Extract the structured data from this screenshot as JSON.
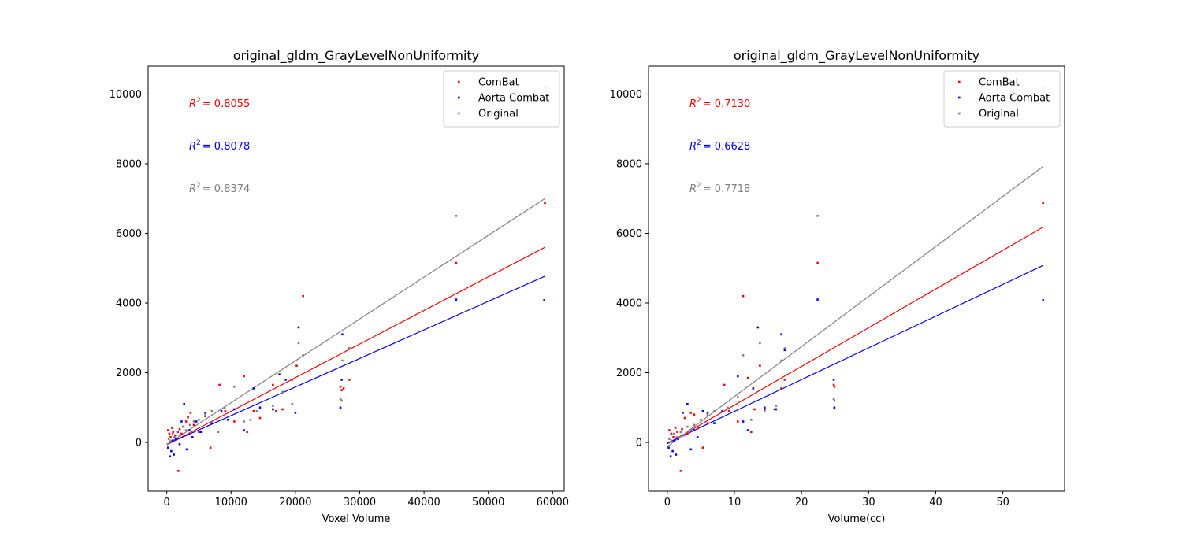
{
  "chart_data": [
    {
      "type": "scatter",
      "title": "original_gldm_GrayLevelNonUniformity",
      "xlabel": "Voxel Volume",
      "ylabel": "",
      "xlim": [
        -2900,
        61800
      ],
      "ylim": [
        -1400,
        10800
      ],
      "xticks": [
        0,
        10000,
        20000,
        30000,
        40000,
        50000,
        60000
      ],
      "yticks": [
        0,
        2000,
        4000,
        6000,
        8000,
        10000
      ],
      "legend": {
        "placement": "top-right",
        "entries": [
          "ComBat",
          "Aorta Combat",
          "Original"
        ]
      },
      "annotations": [
        {
          "prefix": "R",
          "sup": "2",
          "value": "= 0.8055",
          "color": "#ff0000"
        },
        {
          "prefix": "R",
          "sup": "2",
          "value": "= 0.8078",
          "color": "#0000ff"
        },
        {
          "prefix": "R",
          "sup": "2",
          "value": "= 0.8374",
          "color": "#808080"
        }
      ],
      "series": [
        {
          "name": "ComBat",
          "color": "#ff0000",
          "fit": {
            "x": [
              0,
              58800
            ],
            "y": [
              -70,
              5600
            ]
          },
          "points": [
            [
              200,
              350
            ],
            [
              400,
              250
            ],
            [
              600,
              150
            ],
            [
              800,
              420
            ],
            [
              1000,
              300
            ],
            [
              1300,
              200
            ],
            [
              1600,
              100
            ],
            [
              1800,
              -820
            ],
            [
              2000,
              380
            ],
            [
              2300,
              250
            ],
            [
              2600,
              450
            ],
            [
              3000,
              600
            ],
            [
              3300,
              720
            ],
            [
              3700,
              850
            ],
            [
              4200,
              500
            ],
            [
              5000,
              300
            ],
            [
              6000,
              750
            ],
            [
              6800,
              -150
            ],
            [
              8200,
              1650
            ],
            [
              9100,
              900
            ],
            [
              10500,
              600
            ],
            [
              12000,
              1900
            ],
            [
              12500,
              300
            ],
            [
              13500,
              900
            ],
            [
              14500,
              700
            ],
            [
              16500,
              1650
            ],
            [
              17000,
              900
            ],
            [
              18000,
              950
            ],
            [
              19500,
              1800
            ],
            [
              20200,
              2200
            ],
            [
              21200,
              4200
            ],
            [
              27000,
              1600
            ],
            [
              27200,
              1500
            ],
            [
              27500,
              1550
            ],
            [
              28400,
              1800
            ],
            [
              28300,
              2700
            ],
            [
              45000,
              5150
            ],
            [
              58800,
              6870
            ]
          ]
        },
        {
          "name": "Aorta Combat",
          "color": "#0000ff",
          "fit": {
            "x": [
              0,
              58800
            ],
            "y": [
              -50,
              4770
            ]
          },
          "points": [
            [
              200,
              -150
            ],
            [
              500,
              -400
            ],
            [
              700,
              -250
            ],
            [
              900,
              50
            ],
            [
              1100,
              -350
            ],
            [
              1400,
              100
            ],
            [
              1700,
              300
            ],
            [
              2000,
              -50
            ],
            [
              2300,
              600
            ],
            [
              2700,
              1100
            ],
            [
              3100,
              -200
            ],
            [
              3500,
              350
            ],
            [
              4000,
              150
            ],
            [
              4600,
              600
            ],
            [
              5300,
              300
            ],
            [
              6000,
              850
            ],
            [
              7000,
              550
            ],
            [
              8500,
              900
            ],
            [
              9500,
              650
            ],
            [
              10500,
              950
            ],
            [
              12000,
              350
            ],
            [
              13500,
              1550
            ],
            [
              14500,
              1000
            ],
            [
              16500,
              950
            ],
            [
              17500,
              1950
            ],
            [
              18500,
              1800
            ],
            [
              20000,
              850
            ],
            [
              20500,
              3300
            ],
            [
              27000,
              1000
            ],
            [
              27200,
              1800
            ],
            [
              27300,
              3100
            ],
            [
              45000,
              4100
            ],
            [
              58700,
              4080
            ]
          ]
        },
        {
          "name": "Original",
          "color": "#808080",
          "fit": {
            "x": [
              0,
              58800
            ],
            "y": [
              -60,
              7000
            ]
          },
          "points": [
            [
              300,
              100
            ],
            [
              600,
              50
            ],
            [
              900,
              250
            ],
            [
              1200,
              150
            ],
            [
              1600,
              300
            ],
            [
              2000,
              200
            ],
            [
              2500,
              450
            ],
            [
              3000,
              350
            ],
            [
              3600,
              500
            ],
            [
              4200,
              600
            ],
            [
              5000,
              650
            ],
            [
              6000,
              800
            ],
            [
              7000,
              900
            ],
            [
              8000,
              300
            ],
            [
              9000,
              1000
            ],
            [
              10500,
              1600
            ],
            [
              12000,
              600
            ],
            [
              13000,
              650
            ],
            [
              14000,
              900
            ],
            [
              16500,
              1050
            ],
            [
              18000,
              1450
            ],
            [
              19500,
              1100
            ],
            [
              20500,
              2850
            ],
            [
              21200,
              2500
            ],
            [
              27000,
              1250
            ],
            [
              27200,
              1200
            ],
            [
              27300,
              2350
            ],
            [
              28400,
              2700
            ],
            [
              45000,
              6500
            ],
            [
              58800,
              10200
            ]
          ]
        }
      ]
    },
    {
      "type": "scatter",
      "title": "original_gldm_GrayLevelNonUniformity",
      "xlabel": "Volume(cc)",
      "ylabel": "",
      "xlim": [
        -2.8,
        59.2
      ],
      "ylim": [
        -1400,
        10800
      ],
      "xticks": [
        0,
        10,
        20,
        30,
        40,
        50
      ],
      "yticks": [
        0,
        2000,
        4000,
        6000,
        8000,
        10000
      ],
      "legend": {
        "placement": "top-right",
        "entries": [
          "ComBat",
          "Aorta Combat",
          "Original"
        ]
      },
      "annotations": [
        {
          "prefix": "R",
          "sup": "2",
          "value": "= 0.7130",
          "color": "#ff0000"
        },
        {
          "prefix": "R",
          "sup": "2",
          "value": "= 0.6628",
          "color": "#0000ff"
        },
        {
          "prefix": "R",
          "sup": "2",
          "value": "= 0.7718",
          "color": "#808080"
        }
      ],
      "series": [
        {
          "name": "ComBat",
          "color": "#ff0000",
          "fit": {
            "x": [
              0,
              56
            ],
            "y": [
              -40,
              6180
            ]
          },
          "points": [
            [
              0.3,
              350
            ],
            [
              0.6,
              250
            ],
            [
              0.9,
              150
            ],
            [
              1.2,
              420
            ],
            [
              1.5,
              300
            ],
            [
              2.0,
              -820
            ],
            [
              2.2,
              380
            ],
            [
              2.6,
              700
            ],
            [
              3.0,
              250
            ],
            [
              3.5,
              850
            ],
            [
              4.0,
              800
            ],
            [
              4.5,
              400
            ],
            [
              5.3,
              -150
            ],
            [
              6,
              550
            ],
            [
              8.5,
              1650
            ],
            [
              9.2,
              900
            ],
            [
              10.5,
              600
            ],
            [
              11.3,
              4200
            ],
            [
              12,
              1850
            ],
            [
              12.5,
              300
            ],
            [
              13,
              950
            ],
            [
              13.8,
              2200
            ],
            [
              14.5,
              950
            ],
            [
              16,
              950
            ],
            [
              17,
              1550
            ],
            [
              17.5,
              1800
            ],
            [
              22.4,
              5150
            ],
            [
              24.8,
              1650
            ],
            [
              24.9,
              1600
            ],
            [
              56,
              6870
            ]
          ]
        },
        {
          "name": "Aorta Combat",
          "color": "#0000ff",
          "fit": {
            "x": [
              0,
              56
            ],
            "y": [
              -20,
              5080
            ]
          },
          "points": [
            [
              0.2,
              -150
            ],
            [
              0.5,
              -400
            ],
            [
              0.8,
              -250
            ],
            [
              1.0,
              50
            ],
            [
              1.3,
              -350
            ],
            [
              1.6,
              100
            ],
            [
              2.0,
              300
            ],
            [
              2.3,
              850
            ],
            [
              3.0,
              1100
            ],
            [
              3.5,
              -200
            ],
            [
              4,
              350
            ],
            [
              4.5,
              150
            ],
            [
              5.3,
              900
            ],
            [
              6,
              850
            ],
            [
              7,
              550
            ],
            [
              8.2,
              900
            ],
            [
              10.5,
              1900
            ],
            [
              11.3,
              600
            ],
            [
              12,
              350
            ],
            [
              12.8,
              1550
            ],
            [
              13.5,
              3300
            ],
            [
              14.5,
              1000
            ],
            [
              16.2,
              950
            ],
            [
              17,
              3100
            ],
            [
              17.5,
              2650
            ],
            [
              22.4,
              4100
            ],
            [
              24.8,
              1800
            ],
            [
              24.9,
              1000
            ],
            [
              56,
              4080
            ]
          ]
        },
        {
          "name": "Original",
          "color": "#808080",
          "fit": {
            "x": [
              0,
              56
            ],
            "y": [
              -120,
              7920
            ]
          },
          "points": [
            [
              0.3,
              100
            ],
            [
              0.6,
              50
            ],
            [
              1.0,
              250
            ],
            [
              1.4,
              150
            ],
            [
              2.0,
              300
            ],
            [
              2.5,
              200
            ],
            [
              3.0,
              450
            ],
            [
              3.5,
              350
            ],
            [
              4,
              500
            ],
            [
              5,
              650
            ],
            [
              6,
              800
            ],
            [
              7,
              900
            ],
            [
              9,
              1000
            ],
            [
              10.5,
              1300
            ],
            [
              11.3,
              2500
            ],
            [
              12.5,
              650
            ],
            [
              13.8,
              2850
            ],
            [
              14.5,
              900
            ],
            [
              16.2,
              1050
            ],
            [
              17,
              2350
            ],
            [
              17.5,
              2700
            ],
            [
              22.4,
              6500
            ],
            [
              24.8,
              1250
            ],
            [
              24.9,
              1200
            ],
            [
              56,
              10200
            ]
          ]
        }
      ]
    }
  ]
}
